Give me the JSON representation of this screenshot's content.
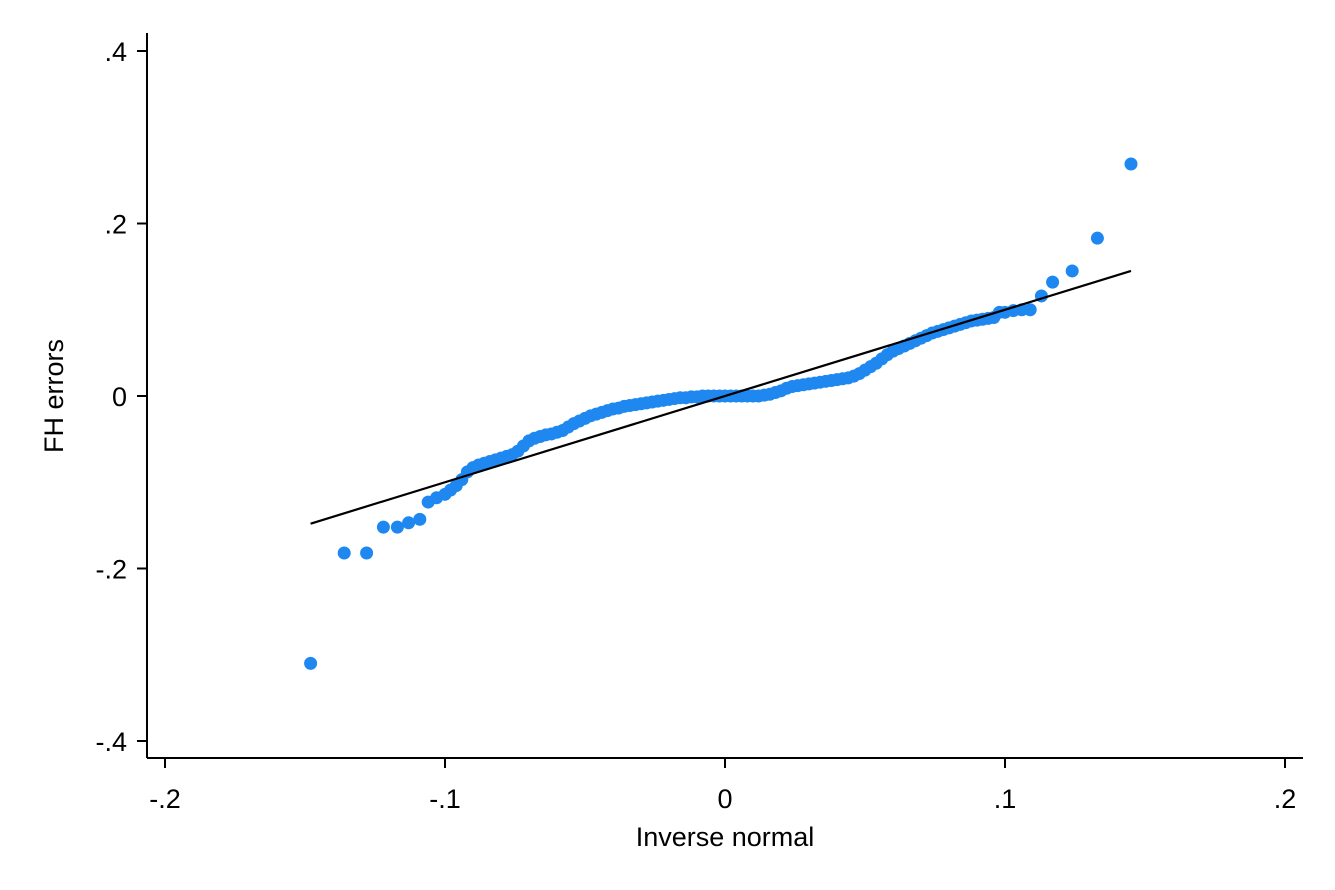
{
  "chart_data": {
    "type": "scatter",
    "title": "",
    "xlabel": "Inverse normal",
    "ylabel": "FH errors",
    "xlim": [
      -0.2,
      0.2
    ],
    "ylim": [
      -0.4,
      0.4
    ],
    "x_ticks": [
      -0.2,
      -0.1,
      0,
      0.1,
      0.2
    ],
    "x_tick_labels": [
      "-.2",
      "-.1",
      "0",
      ".1",
      ".2"
    ],
    "y_ticks": [
      -0.4,
      -0.2,
      0,
      0.2,
      0.4
    ],
    "y_tick_labels": [
      "-.4",
      "-.2",
      "0",
      ".2",
      ".4"
    ],
    "grid": false,
    "legend": "none",
    "colors": {
      "points": "#1e88f0",
      "reference_line": "#000000"
    },
    "reference_line": {
      "x": [
        -0.148,
        0.145
      ],
      "y": [
        -0.148,
        0.145
      ]
    },
    "series": [
      {
        "x": [
          -0.148,
          -0.136,
          -0.128,
          -0.122,
          -0.117,
          -0.113,
          -0.109,
          -0.106,
          -0.103,
          -0.1,
          -0.098,
          -0.096,
          -0.094,
          -0.092,
          -0.09,
          -0.088,
          -0.086,
          -0.084,
          -0.082,
          -0.08,
          -0.078,
          -0.076,
          -0.074,
          -0.072,
          -0.07,
          -0.068,
          -0.066,
          -0.064,
          -0.062,
          -0.06,
          -0.058,
          -0.056,
          -0.054,
          -0.052,
          -0.05,
          -0.048,
          -0.046,
          -0.044,
          -0.042,
          -0.04,
          -0.038,
          -0.036,
          -0.034,
          -0.032,
          -0.03,
          -0.028,
          -0.026,
          -0.024,
          -0.022,
          -0.02,
          -0.018,
          -0.016,
          -0.014,
          -0.012,
          -0.01,
          -0.008,
          -0.006,
          -0.004,
          -0.002,
          0,
          0.002,
          0.004,
          0.006,
          0.008,
          0.01,
          0.012,
          0.014,
          0.016,
          0.018,
          0.02,
          0.022,
          0.024,
          0.026,
          0.028,
          0.03,
          0.032,
          0.034,
          0.036,
          0.038,
          0.04,
          0.042,
          0.044,
          0.046,
          0.048,
          0.05,
          0.052,
          0.054,
          0.056,
          0.058,
          0.06,
          0.062,
          0.064,
          0.066,
          0.068,
          0.07,
          0.072,
          0.074,
          0.076,
          0.078,
          0.08,
          0.082,
          0.084,
          0.086,
          0.088,
          0.09,
          0.092,
          0.094,
          0.096,
          0.098,
          0.1,
          0.103,
          0.106,
          0.109,
          0.113,
          0.117,
          0.124,
          0.133,
          0.145
        ],
        "y": [
          -0.31,
          -0.182,
          -0.182,
          -0.152,
          -0.152,
          -0.147,
          -0.143,
          -0.123,
          -0.118,
          -0.114,
          -0.109,
          -0.104,
          -0.097,
          -0.088,
          -0.083,
          -0.08,
          -0.078,
          -0.076,
          -0.074,
          -0.072,
          -0.07,
          -0.068,
          -0.064,
          -0.058,
          -0.052,
          -0.049,
          -0.047,
          -0.045,
          -0.044,
          -0.042,
          -0.04,
          -0.036,
          -0.032,
          -0.029,
          -0.026,
          -0.023,
          -0.021,
          -0.019,
          -0.017,
          -0.015,
          -0.014,
          -0.012,
          -0.011,
          -0.01,
          -0.009,
          -0.008,
          -0.007,
          -0.006,
          -0.005,
          -0.004,
          -0.003,
          -0.002,
          -0.002,
          -0.001,
          -0.001,
          0,
          0,
          0,
          0,
          0,
          0,
          0,
          0,
          0,
          0,
          0,
          0.001,
          0.002,
          0.004,
          0.006,
          0.009,
          0.011,
          0.012,
          0.013,
          0.014,
          0.015,
          0.016,
          0.017,
          0.018,
          0.019,
          0.02,
          0.021,
          0.023,
          0.026,
          0.03,
          0.034,
          0.038,
          0.043,
          0.048,
          0.052,
          0.055,
          0.058,
          0.061,
          0.064,
          0.067,
          0.07,
          0.073,
          0.075,
          0.077,
          0.079,
          0.081,
          0.083,
          0.085,
          0.087,
          0.088,
          0.089,
          0.09,
          0.091,
          0.097,
          0.097,
          0.099,
          0.1,
          0.1,
          0.116,
          0.132,
          0.145,
          0.183,
          0.269
        ]
      }
    ]
  }
}
